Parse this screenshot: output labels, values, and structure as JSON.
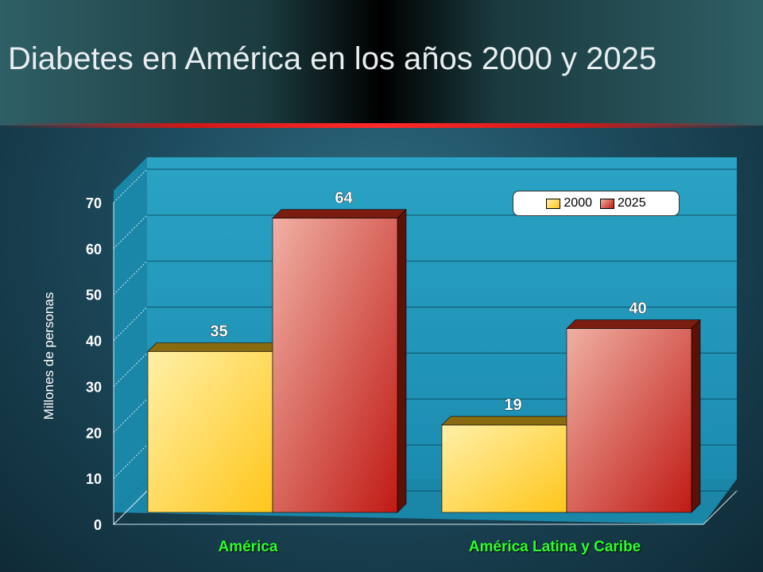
{
  "title": "Diabetes en América en los años 2000 y 2025",
  "chart_data": {
    "type": "bar",
    "categories": [
      "América",
      "América Latina y Caribe"
    ],
    "series": [
      {
        "name": "2000",
        "values": [
          35,
          19
        ],
        "color": "#ffd84a"
      },
      {
        "name": "2025",
        "values": [
          64,
          40
        ],
        "color": "#c8322a"
      }
    ],
    "ylabel": "Millones de personas",
    "ylim": [
      0,
      70
    ],
    "yticks": [
      0,
      10,
      20,
      30,
      40,
      50,
      60,
      70
    ],
    "grid": true,
    "legend_position": "top-right",
    "data_labels": true,
    "style": "3d"
  }
}
